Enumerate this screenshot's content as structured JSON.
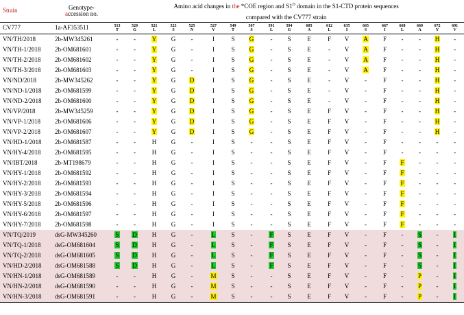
{
  "header": {
    "strain_label": "Strain",
    "genotype_pre": "Genotype-",
    "genotype_a": "a",
    "genotype_post": "ccession no.",
    "title_line1_a": "Amino acid changes in ",
    "title_line1_the": "the",
    "title_line1_b": " *COE region and S1",
    "title_line1_sup": "D",
    "title_line1_c": " domain in the S1-CTD protein sequences",
    "title_line2": "compared with the CV777 strain"
  },
  "positions": [
    {
      "num": "513",
      "aa": "T"
    },
    {
      "num": "520",
      "aa": "G"
    },
    {
      "num": "521",
      "aa": "L"
    },
    {
      "num": "523",
      "aa": "S"
    },
    {
      "num": "525",
      "aa": "N"
    },
    {
      "num": "527",
      "aa": "V"
    },
    {
      "num": "549",
      "aa": "T"
    },
    {
      "num": "567",
      "aa": "S"
    },
    {
      "num": "591",
      "aa": "L"
    },
    {
      "num": "594",
      "aa": "G"
    },
    {
      "num": "605",
      "aa": "A"
    },
    {
      "num": "612",
      "aa": "L"
    },
    {
      "num": "635",
      "aa": "I"
    },
    {
      "num": "665",
      "aa": "S"
    },
    {
      "num": "667",
      "aa": "I"
    },
    {
      "num": "668",
      "aa": "L"
    },
    {
      "num": "669",
      "aa": "A"
    },
    {
      "num": "672",
      "aa": "Y"
    },
    {
      "num": "691",
      "aa": "V"
    }
  ],
  "reference": {
    "strain": "CV777",
    "acc": "1a-AF353511"
  },
  "rows": [
    {
      "strain": "VN/TH/2018",
      "acc": "2b-MW345261",
      "group": "g2b",
      "cells": [
        "-",
        "-",
        "Y:y",
        "G",
        "-",
        "I",
        "S",
        "G:y",
        "-",
        "S",
        "E",
        "F",
        "V",
        "A:y",
        "F",
        "-",
        "-",
        "H:y",
        "-"
      ]
    },
    {
      "strain": "VN/TH-1/2018",
      "acc": "2b-OM681601",
      "group": "g2b",
      "cells": [
        "-",
        "-",
        "Y:y",
        "G",
        "-",
        "I",
        "S",
        "G:y",
        "-",
        "S",
        "E",
        "-",
        "V",
        "A:y",
        "F",
        "-",
        "-",
        "H:y",
        "-"
      ]
    },
    {
      "strain": "VN/TH-2/2018",
      "acc": "2b-OM681602",
      "group": "g2b",
      "cells": [
        "-",
        "-",
        "Y:y",
        "G",
        "-",
        "I",
        "S",
        "G:y",
        "-",
        "S",
        "E",
        "-",
        "V",
        "A:y",
        "F",
        "-",
        "-",
        "H:y",
        "-"
      ]
    },
    {
      "strain": "VN/TH-3/2018",
      "acc": "2b-OM681603",
      "group": "g2b",
      "cells": [
        "-",
        "-",
        "Y:y",
        "G",
        "-",
        "I",
        "S",
        "G:y",
        "-",
        "S",
        "E",
        "-",
        "V",
        "A:y",
        "F",
        "-",
        "-",
        "H:y",
        "-"
      ]
    },
    {
      "strain": "VN/ND/2018",
      "acc": "2b-MW345262",
      "group": "g2b",
      "cells": [
        "-",
        "-",
        "Y:y",
        "G",
        "D:y",
        "I",
        "S",
        "G:y",
        "-",
        "S",
        "E",
        "-",
        "V",
        "-",
        "F",
        "-",
        "-",
        "H:y",
        "-"
      ]
    },
    {
      "strain": "VN/ND-1/2018",
      "acc": "2b-OM681599",
      "group": "g2b",
      "cells": [
        "-",
        "-",
        "Y:y",
        "G",
        "D:y",
        "I",
        "S",
        "G:y",
        "-",
        "S",
        "E",
        "-",
        "V",
        "-",
        "F",
        "-",
        "-",
        "H:y",
        "-"
      ]
    },
    {
      "strain": "VN/ND-2/2018",
      "acc": "2b-OM681600",
      "group": "g2b",
      "cells": [
        "-",
        "-",
        "Y:y",
        "G",
        "D:y",
        "I",
        "S",
        "G:y",
        "-",
        "S",
        "E",
        "-",
        "V",
        "-",
        "F",
        "-",
        "-",
        "H:y",
        "-"
      ]
    },
    {
      "strain": "VN/VP/2018",
      "acc": "2b-MW345259",
      "group": "g2b",
      "cells": [
        "-",
        "-",
        "Y:y",
        "G",
        "D:y",
        "I",
        "S",
        "G:y",
        "-",
        "S",
        "E",
        "F",
        "V",
        "-",
        "F",
        "-",
        "-",
        "H:y",
        "-"
      ]
    },
    {
      "strain": "VN/VP-1/2018",
      "acc": "2b-OM681606",
      "group": "g2b",
      "cells": [
        "-",
        "-",
        "Y:y",
        "G",
        "D:y",
        "I",
        "S",
        "G:y",
        "-",
        "S",
        "E",
        "F",
        "V",
        "-",
        "F",
        "-",
        "-",
        "H:y",
        "-"
      ]
    },
    {
      "strain": "VN/VP-2/2018",
      "acc": "2b-OM681607",
      "group": "g2b",
      "cells": [
        "-",
        "-",
        "Y:y",
        "G",
        "D:y",
        "I",
        "S",
        "G:y",
        "-",
        "S",
        "E",
        "F",
        "V",
        "-",
        "F",
        "-",
        "-",
        "H:y",
        "-"
      ]
    },
    {
      "strain": "VN/HD-1/2018",
      "acc": "2b-OM681587",
      "group": "g2b",
      "cells": [
        "-",
        "-",
        "H",
        "G",
        "-",
        "I",
        "S",
        "-",
        "-",
        "S",
        "E",
        "F",
        "V",
        "-",
        "F",
        "-",
        "-",
        "-",
        "-"
      ]
    },
    {
      "strain": "VN/HY-4/2018",
      "acc": "2b-OM681595",
      "group": "g2b",
      "cells": [
        "-",
        "-",
        "H",
        "G",
        "-",
        "I",
        "S",
        "-",
        "-",
        "S",
        "E",
        "F",
        "V",
        "-",
        "F",
        "-",
        "-",
        "-",
        "-"
      ]
    },
    {
      "strain": "VN/IBT/2018",
      "acc": "2b-MT198679",
      "group": "g2b",
      "cells": [
        "-",
        "-",
        "H",
        "G",
        "-",
        "I",
        "S",
        "-",
        "-",
        "S",
        "E",
        "F",
        "V",
        "-",
        "F",
        "F:y",
        "-",
        "-",
        "-"
      ]
    },
    {
      "strain": "VN/HY-1/2018",
      "acc": "2b-OM681592",
      "group": "g2b",
      "cells": [
        "-",
        "-",
        "H",
        "G",
        "-",
        "I",
        "S",
        "-",
        "-",
        "S",
        "E",
        "F",
        "V",
        "-",
        "F",
        "F:y",
        "-",
        "-",
        "-"
      ]
    },
    {
      "strain": "VN/HY-2/2018",
      "acc": "2b-OM681593",
      "group": "g2b",
      "cells": [
        "-",
        "-",
        "H",
        "G",
        "-",
        "I",
        "S",
        "-",
        "-",
        "S",
        "E",
        "F",
        "V",
        "-",
        "F",
        "F:y",
        "-",
        "-",
        "-"
      ]
    },
    {
      "strain": "VN/HY-3/2018",
      "acc": "2b-OM681594",
      "group": "g2b",
      "cells": [
        "-",
        "-",
        "H",
        "G",
        "-",
        "I",
        "S",
        "-",
        "-",
        "S",
        "E",
        "F",
        "V",
        "-",
        "F",
        "F:y",
        "-",
        "-",
        "-"
      ]
    },
    {
      "strain": "VN/HY-5/2018",
      "acc": "2b-OM681596",
      "group": "g2b",
      "cells": [
        "-",
        "-",
        "H",
        "G",
        "-",
        "I",
        "S",
        "-",
        "-",
        "S",
        "E",
        "F",
        "V",
        "-",
        "F",
        "F:y",
        "-",
        "-",
        "-"
      ]
    },
    {
      "strain": "VN/HY-6/2018",
      "acc": "2b-OM681597",
      "group": "g2b",
      "cells": [
        "-",
        "-",
        "H",
        "G",
        "-",
        "I",
        "S",
        "-",
        "-",
        "S",
        "E",
        "F",
        "V",
        "-",
        "F",
        "F:y",
        "-",
        "-",
        "-"
      ]
    },
    {
      "strain": "VN/HY-7/2018",
      "acc": "2b-OM681598",
      "group": "g2b",
      "cells": [
        "-",
        "-",
        "H",
        "G",
        "-",
        "I",
        "S",
        "-",
        "-",
        "S",
        "E",
        "F",
        "V",
        "-",
        "F",
        "F:y",
        "-",
        "-",
        "-"
      ]
    },
    {
      "strain": "VN/TQ/2019",
      "acc": "dsG-MW345260",
      "group": "dsg",
      "cells": [
        "S:g",
        "D:g",
        "H",
        "G",
        "-",
        "L:g",
        "S",
        "-",
        "F:g",
        "S",
        "E",
        "F",
        "V",
        "-",
        "F",
        "-",
        "S:g",
        "-",
        "I:g"
      ]
    },
    {
      "strain": "VN/TQ-1/2018",
      "acc": "dsG-OM681604",
      "group": "dsg",
      "cells": [
        "S:g",
        "D:g",
        "H",
        "G",
        "-",
        "L:g",
        "S",
        "-",
        "F:g",
        "S",
        "E",
        "F",
        "V",
        "-",
        "F",
        "-",
        "S:g",
        "-",
        "I:g"
      ]
    },
    {
      "strain": "VN/TQ-2/2018",
      "acc": "dsG-OM681605",
      "group": "dsg",
      "cells": [
        "S:g",
        "D:g",
        "H",
        "G",
        "-",
        "L:g",
        "S",
        "-",
        "F:g",
        "S",
        "E",
        "F",
        "V",
        "-",
        "F",
        "-",
        "S:g",
        "-",
        "I:g"
      ]
    },
    {
      "strain": "VN/HD-2/2018",
      "acc": "dsG-OM681588",
      "group": "dsg",
      "cells": [
        "S:g",
        "D:g",
        "H",
        "G",
        "-",
        "L:g",
        "S",
        "-",
        "F:g",
        "S",
        "E",
        "F",
        "V",
        "-",
        "F",
        "-",
        "S:g",
        "-",
        "I:g"
      ]
    },
    {
      "strain": "VN/HN-1/2018",
      "acc": "dsG-OM681589",
      "group": "dsg",
      "cells": [
        "-",
        "-",
        "H",
        "G",
        "-",
        "M:y",
        "S",
        "-",
        "-",
        "S",
        "E",
        "F",
        "V",
        "-",
        "F",
        "-",
        "P:y",
        "-",
        "I:g"
      ]
    },
    {
      "strain": "VN/HN-2/2018",
      "acc": "dsG-OM681590",
      "group": "dsg",
      "cells": [
        "-",
        "-",
        "H",
        "G",
        "-",
        "M:y",
        "S",
        "-",
        "-",
        "S",
        "E",
        "F",
        "V",
        "-",
        "F",
        "-",
        "P:y",
        "-",
        "I:g"
      ]
    },
    {
      "strain": "VN/HN-3/2018",
      "acc": "dsG-OM681591",
      "group": "dsg",
      "cells": [
        "-",
        "-",
        "H",
        "G",
        "-",
        "M:y",
        "S",
        "-",
        "-",
        "S",
        "E",
        "F",
        "V",
        "-",
        "F",
        "-",
        "P:y",
        "-",
        "I:g"
      ]
    }
  ]
}
